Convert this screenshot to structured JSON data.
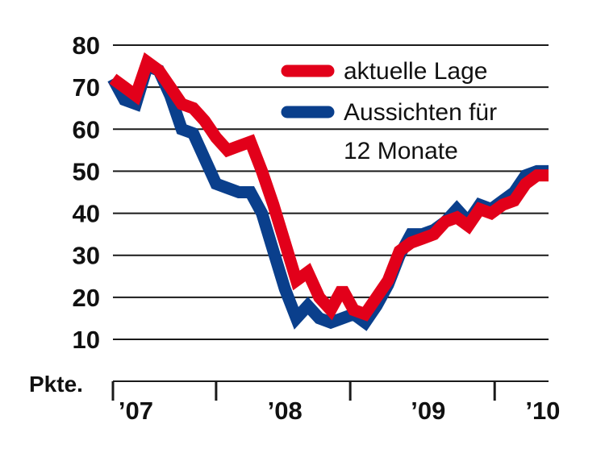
{
  "chart_data": {
    "type": "line",
    "title": "",
    "xlabel": "",
    "ylabel": "Pkte.",
    "ylim": [
      10,
      80
    ],
    "yticks": [
      10,
      20,
      30,
      40,
      50,
      60,
      70,
      80
    ],
    "x_period_labels": [
      "’07",
      "’08",
      "’09",
      "’10"
    ],
    "x_period_index": [
      2,
      15,
      27.5,
      37.5
    ],
    "x_separator_index": [
      0,
      9,
      20.7,
      33.3
    ],
    "grid": true,
    "legend_position": "top-right",
    "colors": {
      "aktuelle Lage": "#e2001a",
      "Aussichten": "#0a3f8c",
      "grid": "#1a1a1a"
    },
    "series": [
      {
        "name": "aktuelle Lage",
        "legend_lines": [
          "aktuelle Lage"
        ],
        "color": "#e2001a",
        "x": [
          0,
          1,
          2,
          3,
          4,
          5,
          6,
          7,
          8,
          9,
          10,
          11,
          12,
          13,
          14,
          15,
          16,
          17,
          18,
          19,
          20,
          21,
          22,
          23,
          24,
          25,
          26,
          27,
          28,
          29,
          30,
          31,
          32,
          33,
          34,
          35,
          36,
          37,
          38
        ],
        "values": [
          72,
          70,
          68,
          76,
          74,
          70,
          66,
          65,
          62,
          58,
          55,
          56,
          57,
          50,
          42,
          33,
          24,
          26,
          20,
          17,
          22,
          17,
          16,
          20,
          24,
          31,
          33,
          34,
          35,
          38,
          39,
          37,
          41,
          40,
          42,
          43,
          47,
          49,
          49
        ]
      },
      {
        "name": "Aussichten für 12 Monate",
        "legend_lines": [
          "Aussichten für",
          "12 Monate"
        ],
        "color": "#0a3f8c",
        "x": [
          0,
          1,
          2,
          3,
          4,
          5,
          6,
          7,
          8,
          9,
          10,
          11,
          12,
          13,
          14,
          15,
          16,
          17,
          18,
          19,
          20,
          21,
          22,
          23,
          24,
          25,
          26,
          27,
          28,
          29,
          30,
          31,
          32,
          33,
          34,
          35,
          36,
          37,
          38
        ],
        "values": [
          72,
          67,
          66,
          75,
          74,
          68,
          60,
          59,
          53,
          47,
          46,
          45,
          45,
          40,
          31,
          22,
          15,
          18,
          15,
          14,
          15,
          16,
          14,
          18,
          23,
          30,
          35,
          35,
          36,
          38,
          41,
          38,
          42,
          41,
          43,
          45,
          49,
          50,
          50
        ]
      }
    ]
  }
}
